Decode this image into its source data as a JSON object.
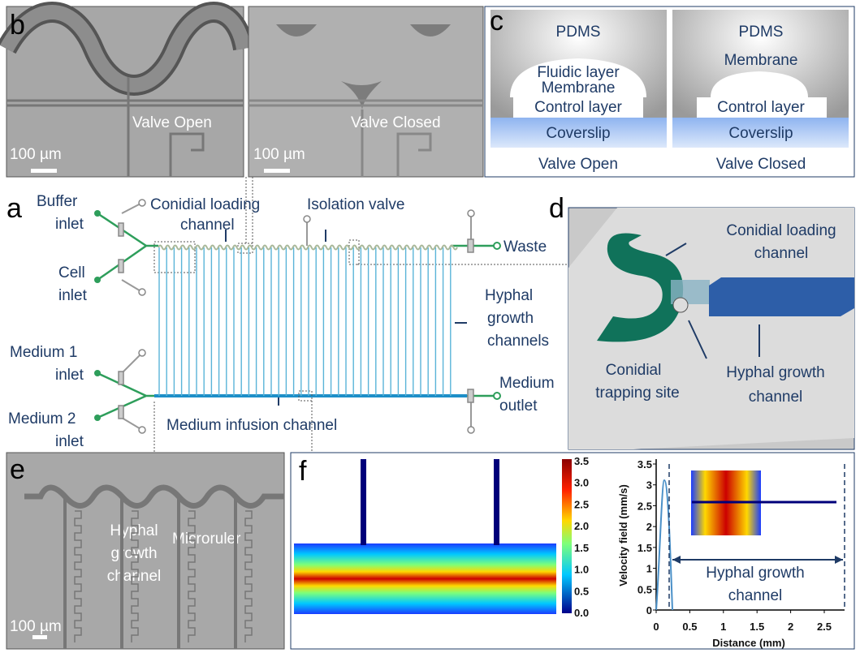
{
  "panel_labels": {
    "a": "a",
    "b": "b",
    "c": "c",
    "d": "d",
    "e": "e",
    "f": "f"
  },
  "b": {
    "left": {
      "caption": "Valve Open",
      "scale": "100 µm"
    },
    "right": {
      "caption": "Valve Closed",
      "scale": "100 µm"
    }
  },
  "c": {
    "open": {
      "top": "PDMS",
      "fluidic": "Fluidic layer",
      "membrane": "Membrane",
      "control": "Control layer",
      "coverslip": "Coverslip",
      "caption": "Valve Open"
    },
    "closed": {
      "top": "PDMS",
      "membrane": "Membrane",
      "control": "Control layer",
      "coverslip": "Coverslip",
      "caption": "Valve Closed"
    }
  },
  "a": {
    "buffer_inlet": [
      "Buffer",
      "inlet"
    ],
    "cell_inlet": [
      "Cell",
      "inlet"
    ],
    "medium1_inlet": [
      "Medium 1",
      "inlet"
    ],
    "medium2_inlet": [
      "Medium 2",
      "inlet"
    ],
    "loading_channel": [
      "Conidial loading",
      "channel"
    ],
    "isolation_valve": "Isolation valve",
    "waste": "Waste",
    "growth_channels": [
      "Hyphal",
      "growth",
      "channels"
    ],
    "medium_outlet": [
      "Medium",
      "outlet"
    ],
    "infusion_channel": "Medium infusion channel"
  },
  "d": {
    "loading_channel": [
      "Conidial loading",
      "channel"
    ],
    "trapping_site": [
      "Conidial",
      "trapping site"
    ],
    "growth_channel": [
      "Hyphal growth",
      "channel"
    ]
  },
  "e": {
    "growth_channel": [
      "Hyphal",
      "growth",
      "channel"
    ],
    "microruler": "Microruler",
    "scale": "100 µm"
  },
  "f": {
    "colorbar_ticks": [
      "3.5",
      "3.0",
      "2.5",
      "2.0",
      "1.5",
      "1.0",
      "0.5",
      "0.0"
    ],
    "plot": {
      "y_label": "Velocity field (mm/s)",
      "x_label": "Distance (mm)",
      "yticks": [
        "0",
        "0.5",
        "1",
        "1.5",
        "2",
        "2.5",
        "3",
        "3.5"
      ],
      "xticks": [
        "0",
        "0.5",
        "1",
        "1.5",
        "2",
        "2.5"
      ],
      "annotation": [
        "Hyphal growth",
        "channel"
      ]
    }
  }
}
